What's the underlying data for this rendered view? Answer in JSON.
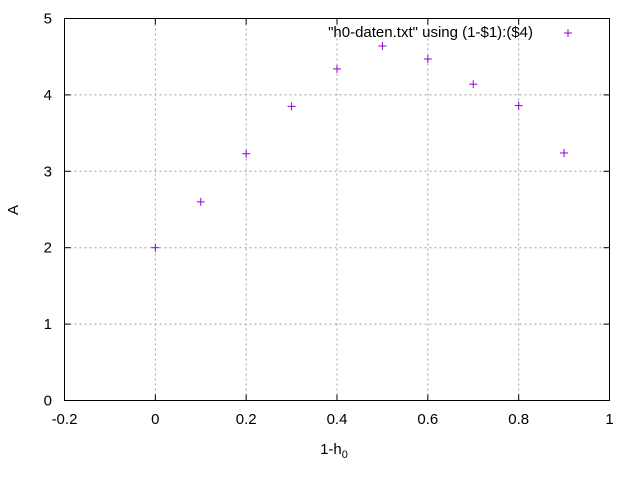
{
  "chart_data": {
    "type": "scatter",
    "title": "",
    "xlabel": {
      "base": "1-h",
      "subscript": "0"
    },
    "ylabel": "A",
    "xlim": [
      -0.2,
      1
    ],
    "ylim": [
      0,
      5
    ],
    "xticks": [
      -0.2,
      0,
      0.2,
      0.4,
      0.6,
      0.8,
      1
    ],
    "xtick_labels": [
      "-0.2",
      "0",
      "0.2",
      "0.4",
      "0.6",
      "0.8",
      "1"
    ],
    "yticks": [
      0,
      1,
      2,
      3,
      4,
      5
    ],
    "ytick_labels": [
      "0",
      "1",
      "2",
      "3",
      "4",
      "5"
    ],
    "grid": true,
    "legend_position": "top-right",
    "marker": "plus",
    "series": [
      {
        "name": "\"h0-daten.txt\" using (1-$1):($4)",
        "color": "#9400d3",
        "x": [
          0,
          0.1,
          0.2,
          0.3,
          0.4,
          0.5,
          0.6,
          0.7,
          0.8,
          0.9
        ],
        "y": [
          2.0,
          2.6,
          3.23,
          3.85,
          4.34,
          4.64,
          4.47,
          4.14,
          3.86,
          3.24
        ]
      }
    ]
  }
}
